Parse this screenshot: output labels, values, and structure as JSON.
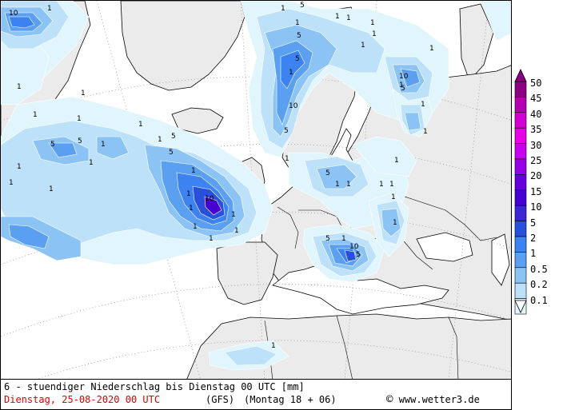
{
  "map": {
    "contour_labels": [
      "10",
      "1",
      "1",
      "1",
      "5",
      "1",
      "1",
      "5",
      "1",
      "1",
      "1",
      "1",
      "10",
      "1",
      "1",
      "1",
      "1",
      "1",
      "5",
      "5",
      "1",
      "1",
      "1",
      "1",
      "10",
      "5",
      "1",
      "5",
      "5",
      "1",
      "1",
      "1",
      "1",
      "1",
      "5",
      "1",
      "1",
      "1",
      "1",
      "1",
      "1",
      "1",
      "5",
      "1",
      "1",
      "10",
      "5",
      "1",
      "5",
      "1",
      "10",
      "5",
      "1",
      "1",
      "1",
      "1",
      "1",
      "1"
    ]
  },
  "legend": {
    "levels": [
      "50",
      "45",
      "40",
      "35",
      "30",
      "25",
      "20",
      "15",
      "10",
      "5",
      "2",
      "1",
      "0.5",
      "0.2",
      "0.1"
    ],
    "colors": [
      "#8c0082",
      "#b400b4",
      "#d200d2",
      "#e600e6",
      "#c800f0",
      "#9600e6",
      "#6400dc",
      "#4600d2",
      "#3c28d2",
      "#2850dc",
      "#3c82f0",
      "#5a9ff0",
      "#8cc3f5",
      "#bee1fa",
      "#e1f5fc"
    ]
  },
  "colors": {
    "land": "#ebebeb",
    "sea": "#ffffff",
    "precip_0_1": "#e1f5fc",
    "precip_0_5": "#bee1fa",
    "precip_1": "#8cc3f5",
    "precip_2": "#5a9ff0",
    "precip_5": "#3c82f0",
    "precip_10": "#2850dc",
    "precip_15": "#4600d2"
  },
  "footer": {
    "caption": "6 - stuendiger Niederschlag bis Dienstag 00 UTC [mm]",
    "date": "Dienstag, 25-08-2020  00 UTC",
    "model": "(GFS)",
    "run": "(Montag 18 + 06)",
    "copyright_symbol": "©",
    "credit": "www.wetter3.de"
  }
}
